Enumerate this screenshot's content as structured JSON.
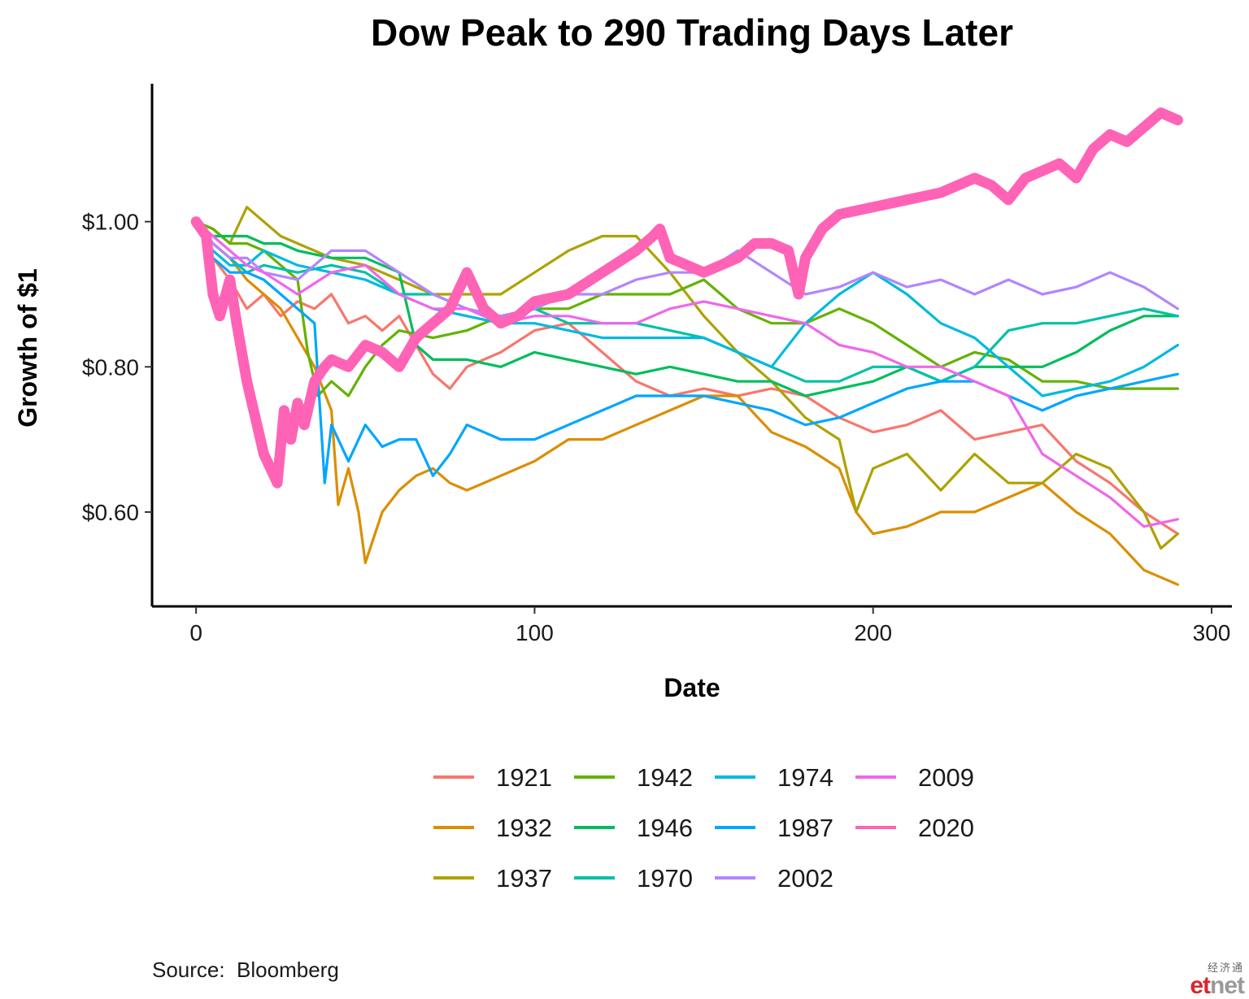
{
  "chart_data": {
    "type": "line",
    "title": "Dow Peak to 290 Trading Days Later",
    "xlabel": "Date",
    "ylabel": "Growth of $1",
    "xlim": [
      -13,
      306
    ],
    "ylim": [
      0.47,
      1.19
    ],
    "x_ticks": [
      0,
      100,
      200,
      300
    ],
    "y_ticks": [
      0.6,
      0.8,
      1.0
    ],
    "y_tick_labels": [
      "$0.60",
      "$0.80",
      "$1.00"
    ],
    "grid": false,
    "legend_position": "bottom",
    "series": [
      {
        "name": "1921",
        "color": "#F8766D",
        "x": [
          0,
          5,
          10,
          15,
          20,
          25,
          30,
          35,
          40,
          45,
          50,
          55,
          60,
          65,
          70,
          75,
          80,
          90,
          100,
          110,
          120,
          130,
          140,
          150,
          160,
          170,
          180,
          190,
          200,
          210,
          220,
          230,
          240,
          250,
          260,
          270,
          280,
          290
        ],
        "y": [
          1.0,
          0.95,
          0.92,
          0.88,
          0.9,
          0.87,
          0.89,
          0.88,
          0.9,
          0.86,
          0.87,
          0.85,
          0.87,
          0.83,
          0.79,
          0.77,
          0.8,
          0.82,
          0.85,
          0.86,
          0.82,
          0.78,
          0.76,
          0.77,
          0.76,
          0.77,
          0.76,
          0.73,
          0.71,
          0.72,
          0.74,
          0.7,
          0.71,
          0.72,
          0.67,
          0.64,
          0.6,
          0.57
        ]
      },
      {
        "name": "1932",
        "color": "#DB8E00",
        "x": [
          0,
          5,
          10,
          15,
          20,
          25,
          30,
          35,
          40,
          42,
          45,
          48,
          50,
          55,
          60,
          65,
          70,
          75,
          80,
          90,
          100,
          110,
          120,
          130,
          140,
          150,
          160,
          170,
          180,
          190,
          195,
          200,
          210,
          220,
          230,
          240,
          250,
          260,
          270,
          280,
          290
        ],
        "y": [
          1.0,
          0.97,
          0.95,
          0.92,
          0.9,
          0.88,
          0.84,
          0.8,
          0.74,
          0.61,
          0.66,
          0.6,
          0.53,
          0.6,
          0.63,
          0.65,
          0.66,
          0.64,
          0.63,
          0.65,
          0.67,
          0.7,
          0.7,
          0.72,
          0.74,
          0.76,
          0.76,
          0.71,
          0.69,
          0.66,
          0.6,
          0.57,
          0.58,
          0.6,
          0.6,
          0.62,
          0.64,
          0.6,
          0.57,
          0.52,
          0.5
        ]
      },
      {
        "name": "1937",
        "color": "#AEA200",
        "x": [
          0,
          5,
          10,
          15,
          20,
          25,
          30,
          40,
          50,
          60,
          70,
          80,
          90,
          100,
          110,
          120,
          130,
          140,
          150,
          160,
          170,
          180,
          190,
          195,
          200,
          210,
          220,
          230,
          240,
          250,
          260,
          270,
          280,
          285,
          290
        ],
        "y": [
          1.0,
          0.99,
          0.97,
          1.02,
          1.0,
          0.98,
          0.97,
          0.95,
          0.94,
          0.92,
          0.9,
          0.9,
          0.9,
          0.93,
          0.96,
          0.98,
          0.98,
          0.93,
          0.87,
          0.82,
          0.78,
          0.73,
          0.7,
          0.6,
          0.66,
          0.68,
          0.63,
          0.68,
          0.64,
          0.64,
          0.68,
          0.66,
          0.6,
          0.55,
          0.57
        ]
      },
      {
        "name": "1942",
        "color": "#64B200",
        "x": [
          0,
          5,
          10,
          15,
          20,
          25,
          30,
          33,
          36,
          40,
          45,
          50,
          55,
          60,
          70,
          80,
          90,
          100,
          110,
          120,
          130,
          140,
          150,
          160,
          170,
          180,
          190,
          200,
          210,
          220,
          230,
          240,
          250,
          260,
          270,
          280,
          290
        ],
        "y": [
          1.0,
          0.99,
          0.97,
          0.97,
          0.96,
          0.94,
          0.92,
          0.82,
          0.76,
          0.78,
          0.76,
          0.8,
          0.83,
          0.85,
          0.84,
          0.85,
          0.87,
          0.88,
          0.88,
          0.9,
          0.9,
          0.9,
          0.92,
          0.88,
          0.86,
          0.86,
          0.88,
          0.86,
          0.83,
          0.8,
          0.82,
          0.81,
          0.78,
          0.78,
          0.77,
          0.77,
          0.77
        ]
      },
      {
        "name": "1946",
        "color": "#00BD5C",
        "x": [
          0,
          5,
          10,
          15,
          20,
          25,
          30,
          40,
          50,
          60,
          65,
          70,
          80,
          90,
          100,
          110,
          120,
          130,
          140,
          150,
          160,
          170,
          180,
          190,
          200,
          210,
          220,
          230,
          240,
          250,
          260,
          270,
          280,
          290
        ],
        "y": [
          1.0,
          0.98,
          0.98,
          0.98,
          0.97,
          0.97,
          0.96,
          0.95,
          0.95,
          0.93,
          0.83,
          0.81,
          0.81,
          0.8,
          0.82,
          0.81,
          0.8,
          0.79,
          0.8,
          0.79,
          0.78,
          0.78,
          0.76,
          0.77,
          0.78,
          0.8,
          0.78,
          0.8,
          0.8,
          0.8,
          0.82,
          0.85,
          0.87,
          0.87
        ]
      },
      {
        "name": "1970",
        "color": "#00C1A7",
        "x": [
          0,
          5,
          10,
          15,
          20,
          30,
          40,
          50,
          60,
          70,
          80,
          90,
          100,
          110,
          120,
          130,
          140,
          150,
          160,
          170,
          180,
          190,
          200,
          210,
          220,
          230,
          240,
          250,
          260,
          270,
          280,
          290
        ],
        "y": [
          1.0,
          0.97,
          0.95,
          0.93,
          0.94,
          0.93,
          0.94,
          0.93,
          0.9,
          0.9,
          0.88,
          0.86,
          0.88,
          0.86,
          0.86,
          0.86,
          0.85,
          0.84,
          0.82,
          0.8,
          0.78,
          0.78,
          0.8,
          0.8,
          0.78,
          0.8,
          0.85,
          0.86,
          0.86,
          0.87,
          0.88,
          0.87
        ]
      },
      {
        "name": "1974",
        "color": "#00BADE",
        "x": [
          0,
          5,
          10,
          15,
          20,
          30,
          40,
          50,
          60,
          70,
          80,
          90,
          100,
          110,
          120,
          130,
          140,
          150,
          160,
          170,
          180,
          190,
          200,
          210,
          220,
          230,
          240,
          250,
          260,
          270,
          280,
          290
        ],
        "y": [
          1.0,
          0.96,
          0.94,
          0.94,
          0.96,
          0.94,
          0.93,
          0.92,
          0.9,
          0.88,
          0.87,
          0.86,
          0.86,
          0.85,
          0.84,
          0.84,
          0.84,
          0.84,
          0.82,
          0.8,
          0.86,
          0.9,
          0.93,
          0.9,
          0.86,
          0.84,
          0.8,
          0.76,
          0.77,
          0.78,
          0.8,
          0.83
        ]
      },
      {
        "name": "1987",
        "color": "#00A6FF",
        "x": [
          0,
          5,
          10,
          15,
          20,
          25,
          30,
          35,
          38,
          40,
          42,
          45,
          50,
          55,
          60,
          65,
          70,
          75,
          80,
          90,
          100,
          110,
          120,
          130,
          140,
          150,
          160,
          170,
          180,
          190,
          200,
          210,
          220,
          230,
          240,
          250,
          260,
          270,
          280,
          290
        ],
        "y": [
          1.0,
          0.95,
          0.93,
          0.93,
          0.92,
          0.9,
          0.88,
          0.86,
          0.64,
          0.72,
          0.7,
          0.67,
          0.72,
          0.69,
          0.7,
          0.7,
          0.65,
          0.68,
          0.72,
          0.7,
          0.7,
          0.72,
          0.74,
          0.76,
          0.76,
          0.76,
          0.75,
          0.74,
          0.72,
          0.73,
          0.75,
          0.77,
          0.78,
          0.78,
          0.76,
          0.74,
          0.76,
          0.77,
          0.78,
          0.79
        ]
      },
      {
        "name": "2002",
        "color": "#B385FF",
        "x": [
          0,
          5,
          10,
          15,
          20,
          30,
          40,
          50,
          60,
          70,
          80,
          90,
          100,
          110,
          120,
          130,
          140,
          150,
          160,
          170,
          180,
          190,
          200,
          210,
          220,
          230,
          240,
          250,
          260,
          270,
          280,
          290
        ],
        "y": [
          1.0,
          0.97,
          0.95,
          0.95,
          0.93,
          0.92,
          0.96,
          0.96,
          0.93,
          0.9,
          0.88,
          0.87,
          0.88,
          0.9,
          0.9,
          0.92,
          0.93,
          0.93,
          0.96,
          0.93,
          0.9,
          0.91,
          0.93,
          0.91,
          0.92,
          0.9,
          0.92,
          0.9,
          0.91,
          0.93,
          0.91,
          0.88
        ]
      },
      {
        "name": "2009",
        "color": "#EF67EB",
        "x": [
          0,
          5,
          10,
          15,
          20,
          30,
          40,
          50,
          60,
          70,
          80,
          90,
          100,
          110,
          120,
          130,
          140,
          150,
          160,
          170,
          180,
          190,
          200,
          210,
          220,
          230,
          240,
          250,
          260,
          270,
          280,
          290
        ],
        "y": [
          1.0,
          0.98,
          0.96,
          0.94,
          0.93,
          0.9,
          0.93,
          0.94,
          0.9,
          0.88,
          0.88,
          0.86,
          0.87,
          0.87,
          0.86,
          0.86,
          0.88,
          0.89,
          0.88,
          0.87,
          0.86,
          0.83,
          0.82,
          0.8,
          0.8,
          0.78,
          0.76,
          0.68,
          0.65,
          0.62,
          0.58,
          0.59
        ]
      },
      {
        "name": "2020",
        "color": "#FF63B6",
        "x": [
          0,
          3,
          5,
          7,
          10,
          12,
          15,
          18,
          20,
          22,
          24,
          26,
          28,
          30,
          32,
          35,
          38,
          40,
          45,
          50,
          55,
          60,
          65,
          70,
          75,
          80,
          85,
          90,
          95,
          100,
          110,
          120,
          130,
          135,
          137,
          140,
          150,
          160,
          165,
          170,
          175,
          178,
          180,
          185,
          190,
          200,
          210,
          220,
          230,
          235,
          240,
          245,
          250,
          255,
          260,
          265,
          270,
          275,
          280,
          285,
          290
        ],
        "y": [
          1.0,
          0.98,
          0.9,
          0.87,
          0.92,
          0.86,
          0.78,
          0.72,
          0.68,
          0.66,
          0.64,
          0.74,
          0.7,
          0.75,
          0.72,
          0.78,
          0.8,
          0.81,
          0.8,
          0.83,
          0.82,
          0.8,
          0.84,
          0.86,
          0.88,
          0.93,
          0.88,
          0.86,
          0.87,
          0.89,
          0.9,
          0.93,
          0.96,
          0.98,
          0.99,
          0.95,
          0.93,
          0.95,
          0.97,
          0.97,
          0.96,
          0.9,
          0.95,
          0.99,
          1.01,
          1.02,
          1.03,
          1.04,
          1.06,
          1.05,
          1.03,
          1.06,
          1.07,
          1.08,
          1.06,
          1.1,
          1.12,
          1.11,
          1.13,
          1.15,
          1.14
        ]
      }
    ],
    "highlight_series": "2020",
    "legend_columns": [
      [
        "1921",
        "1932",
        "1937"
      ],
      [
        "1942",
        "1946",
        "1970"
      ],
      [
        "1974",
        "1987",
        "2002"
      ],
      [
        "2009",
        "2020"
      ]
    ]
  },
  "source": "Source:  Bloomberg",
  "watermark": {
    "chinese": "经济通",
    "brand_a": "et",
    "brand_b": "net"
  }
}
